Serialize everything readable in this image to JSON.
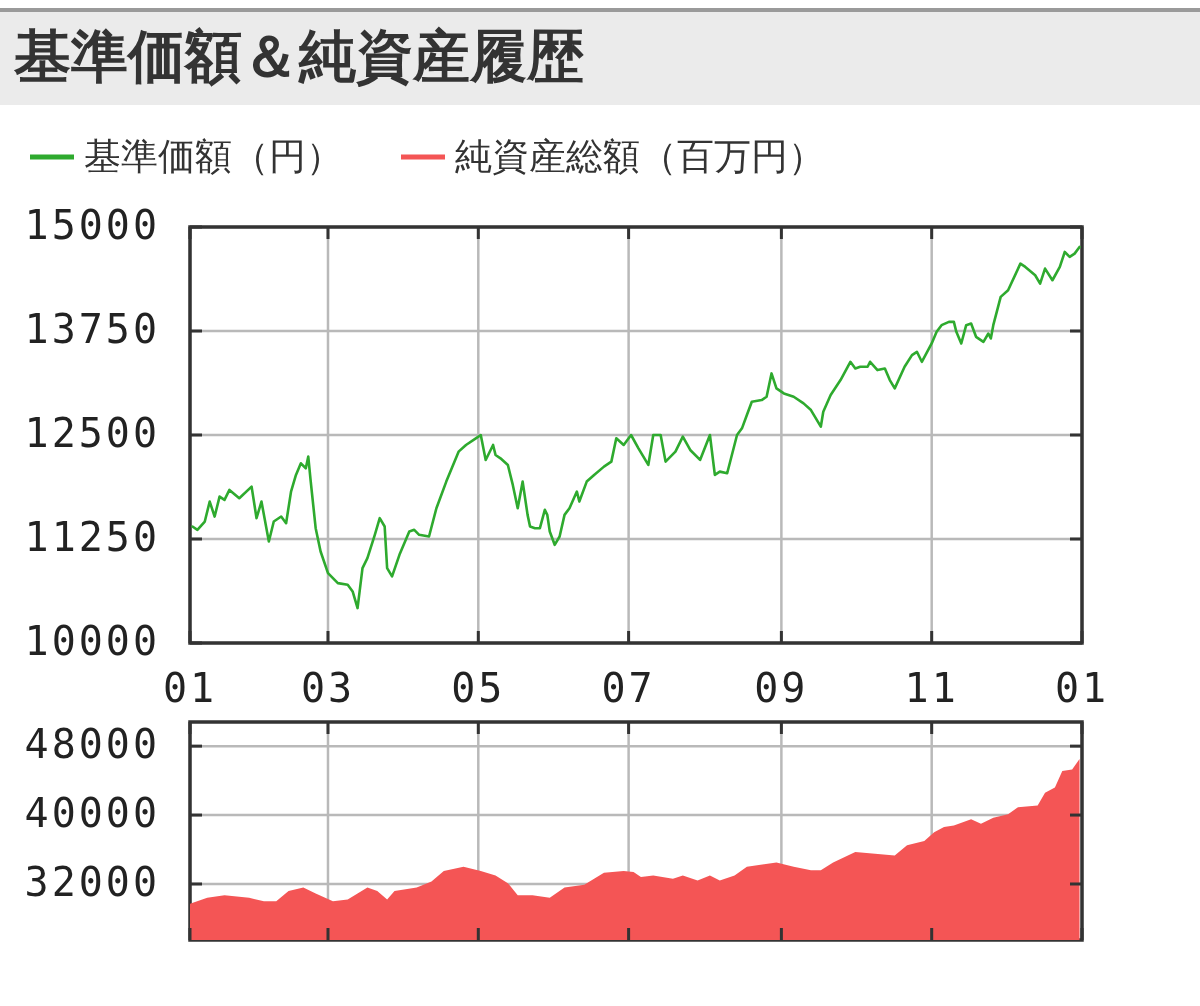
{
  "chart_data": [
    {
      "type": "line",
      "title": "基準価額＆純資産履歴",
      "legend": "top",
      "grid": true,
      "x": [
        "2001-01-05",
        "2001-01-07",
        "2001-01-10",
        "2001-01-12",
        "2001-01-14",
        "2001-01-16",
        "2001-01-18",
        "2001-01-20",
        "2001-01-24",
        "2001-01-29",
        "2001-01-31",
        "2001-02-02",
        "2001-02-05",
        "2001-02-07",
        "2001-02-10",
        "2001-02-12",
        "2001-02-14",
        "2001-02-16",
        "2001-02-18",
        "2001-02-20",
        "2001-02-21",
        "2001-02-22",
        "2001-02-24",
        "2001-02-26",
        "2001-03-01",
        "2001-03-05",
        "2001-03-09",
        "2001-03-11",
        "2001-03-13",
        "2001-03-15",
        "2001-03-17",
        "2001-03-20",
        "2001-03-22",
        "2001-03-24",
        "2001-03-25",
        "2001-03-27",
        "2001-03-30",
        "2001-04-03",
        "2001-04-05",
        "2001-04-07",
        "2001-04-11",
        "2001-04-14",
        "2001-04-18",
        "2001-04-23",
        "2001-04-26",
        "2001-04-30",
        "2001-05-02",
        "2001-05-04",
        "2001-05-07",
        "2001-05-08",
        "2001-05-10",
        "2001-05-13",
        "2001-05-15",
        "2001-05-17",
        "2001-05-19",
        "2001-05-21",
        "2001-05-22",
        "2001-05-24",
        "2001-05-26",
        "2001-05-28",
        "2001-05-29",
        "2001-05-30",
        "2001-06-01",
        "2001-06-03",
        "2001-06-05",
        "2001-06-07",
        "2001-06-10",
        "2001-06-11",
        "2001-06-14",
        "2001-06-17",
        "2001-06-21",
        "2001-06-24",
        "2001-06-26",
        "2001-06-29",
        "2001-07-02",
        "2001-07-05",
        "2001-07-09",
        "2001-07-11",
        "2001-07-14",
        "2001-07-16",
        "2001-07-20",
        "2001-07-23",
        "2001-07-26",
        "2001-07-30",
        "2001-08-03",
        "2001-08-05",
        "2001-08-07",
        "2001-08-10",
        "2001-08-14",
        "2001-08-16",
        "2001-08-18",
        "2001-08-20",
        "2001-08-24",
        "2001-08-26",
        "2001-08-28",
        "2001-08-30",
        "2001-09-02",
        "2001-09-06",
        "2001-09-10",
        "2001-09-13",
        "2001-09-17",
        "2001-09-18",
        "2001-09-21",
        "2001-09-25",
        "2001-09-29",
        "2001-10-01",
        "2001-10-03",
        "2001-10-06",
        "2001-10-07",
        "2001-10-10",
        "2001-10-13",
        "2001-10-15",
        "2001-10-17",
        "2001-10-21",
        "2001-10-24",
        "2001-10-26",
        "2001-10-28",
        "2001-11-01",
        "2001-11-03",
        "2001-11-05",
        "2001-11-08",
        "2001-11-10",
        "2001-11-11",
        "2001-11-13",
        "2001-11-15",
        "2001-11-17",
        "2001-11-19",
        "2001-11-22",
        "2001-11-24",
        "2001-11-25",
        "2001-11-26",
        "2001-11-29",
        "2001-12-02",
        "2001-12-07",
        "2001-12-09",
        "2001-12-13",
        "2001-12-15",
        "2001-12-17",
        "2001-12-20",
        "2001-12-23",
        "2001-12-25",
        "2001-12-27",
        "2001-12-29",
        "2001-12-31"
      ],
      "xlim": [
        "2001-01-04",
        "2002-01-01"
      ],
      "xticks": [
        {
          "value": "2001-01-04",
          "label": "01"
        },
        {
          "value": "2001-03-01",
          "label": "03"
        },
        {
          "value": "2001-05-01",
          "label": "05"
        },
        {
          "value": "2001-07-01",
          "label": "07"
        },
        {
          "value": "2001-09-01",
          "label": "09"
        },
        {
          "value": "2001-11-01",
          "label": "11"
        },
        {
          "value": "2002-01-01",
          "label": "01"
        }
      ],
      "ylim": [
        10000,
        15000
      ],
      "yticks": [
        10000,
        11250,
        12500,
        13750,
        15000
      ],
      "series": [
        {
          "name": "基準価額（円）",
          "color": "#2eaa2e",
          "values": [
            11400,
            11360,
            11460,
            11700,
            11520,
            11760,
            11720,
            11840,
            11740,
            11880,
            11500,
            11700,
            11220,
            11460,
            11520,
            11440,
            11820,
            12020,
            12160,
            12100,
            12240,
            11940,
            11380,
            11100,
            10840,
            10720,
            10700,
            10620,
            10420,
            10900,
            11020,
            11300,
            11500,
            11400,
            10900,
            10800,
            11060,
            11340,
            11360,
            11300,
            11280,
            11620,
            11940,
            12300,
            12380,
            12460,
            12500,
            12200,
            12380,
            12260,
            12220,
            12140,
            11900,
            11620,
            11940,
            11540,
            11400,
            11380,
            11380,
            11600,
            11540,
            11340,
            11180,
            11280,
            11540,
            11620,
            11820,
            11700,
            11940,
            12020,
            12120,
            12180,
            12460,
            12380,
            12500,
            12340,
            12140,
            12500,
            12500,
            12180,
            12300,
            12480,
            12320,
            12200,
            12500,
            12020,
            12060,
            12040,
            12500,
            12580,
            12740,
            12900,
            12920,
            12960,
            13240,
            13060,
            13000,
            12960,
            12880,
            12800,
            12600,
            12780,
            12980,
            13160,
            13380,
            13300,
            13320,
            13320,
            13380,
            13280,
            13300,
            13160,
            13060,
            13320,
            13460,
            13500,
            13380,
            13600,
            13740,
            13820,
            13860,
            13860,
            13740,
            13600,
            13820,
            13840,
            13680,
            13620,
            13720,
            13660,
            13820,
            14160,
            14240,
            14560,
            14520,
            14420,
            14320,
            14500,
            14360,
            14520,
            14700,
            14640,
            14680,
            14760
          ]
        }
      ]
    },
    {
      "type": "area",
      "legend": "top",
      "grid": true,
      "tick_labels": "y",
      "x": [
        "2001-01-04",
        "2001-01-11",
        "2001-01-18",
        "2001-01-28",
        "2001-02-03",
        "2001-02-08",
        "2001-02-13",
        "2001-02-19",
        "2001-02-24",
        "2001-03-03",
        "2001-03-09",
        "2001-03-17",
        "2001-03-21",
        "2001-03-25",
        "2001-03-28",
        "2001-04-06",
        "2001-04-12",
        "2001-04-17",
        "2001-04-25",
        "2001-05-02",
        "2001-05-08",
        "2001-05-13",
        "2001-05-17",
        "2001-05-23",
        "2001-05-30",
        "2001-06-05",
        "2001-06-13",
        "2001-06-21",
        "2001-06-29",
        "2001-07-03",
        "2001-07-06",
        "2001-07-11",
        "2001-07-19",
        "2001-07-23",
        "2001-07-29",
        "2001-08-03",
        "2001-08-07",
        "2001-08-13",
        "2001-08-18",
        "2001-08-25",
        "2001-08-30",
        "2001-09-06",
        "2001-09-13",
        "2001-09-17",
        "2001-09-22",
        "2001-10-01",
        "2001-10-09",
        "2001-10-17",
        "2001-10-22",
        "2001-10-29",
        "2001-11-02",
        "2001-11-06",
        "2001-11-10",
        "2001-11-17",
        "2001-11-21",
        "2001-11-26",
        "2001-12-02",
        "2001-12-06",
        "2001-12-14",
        "2001-12-17",
        "2001-12-21",
        "2001-12-24",
        "2001-12-28",
        "2001-12-31"
      ],
      "xlim": [
        "2001-01-04",
        "2002-01-01"
      ],
      "xticks": [
        "2001-01-04",
        "2001-03-01",
        "2001-05-01",
        "2001-07-01",
        "2001-09-01",
        "2001-11-01",
        "2002-01-01"
      ],
      "ylim": [
        25500,
        50800
      ],
      "yticks": [
        32000,
        40000,
        48000
      ],
      "series": [
        {
          "name": "純資産総額（百万円）",
          "color": "#f45555",
          "values": [
            29700,
            30400,
            30700,
            30400,
            30000,
            30000,
            31200,
            31600,
            30900,
            30000,
            30200,
            31600,
            31200,
            30200,
            31200,
            31600,
            32300,
            33500,
            34000,
            33500,
            33000,
            32100,
            30700,
            30700,
            30400,
            31600,
            31900,
            33300,
            33500,
            33400,
            32800,
            33000,
            32600,
            33000,
            32400,
            33000,
            32400,
            33000,
            34000,
            34300,
            34500,
            34000,
            33600,
            33600,
            34500,
            35700,
            35500,
            35300,
            36500,
            37000,
            38000,
            38600,
            38800,
            39500,
            39000,
            39700,
            40100,
            40900,
            41100,
            42600,
            43200,
            45100,
            45300,
            46500
          ]
        }
      ]
    }
  ]
}
